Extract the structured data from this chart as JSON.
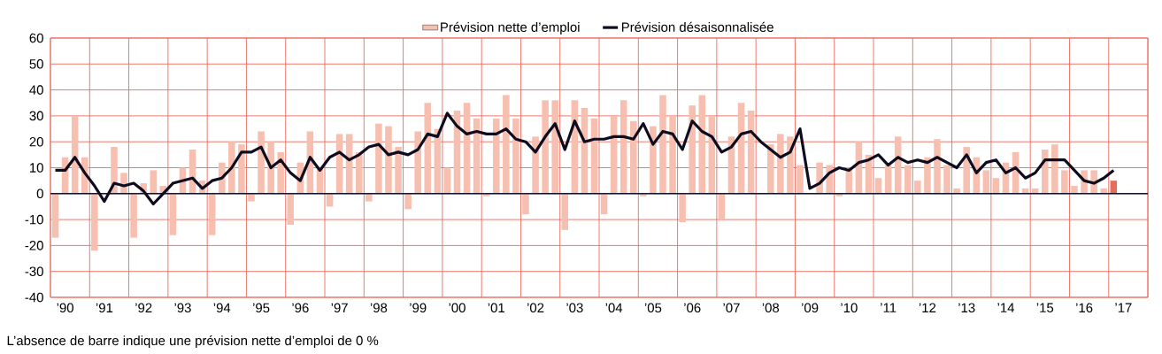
{
  "chart_data": {
    "type": "bar",
    "ylim": [
      -40,
      60
    ],
    "yticks": [
      -40,
      -30,
      -20,
      -10,
      0,
      10,
      20,
      30,
      40,
      50,
      60
    ],
    "categories": [
      null,
      "’90",
      null,
      null,
      null,
      "’91",
      null,
      null,
      null,
      "’92",
      null,
      null,
      null,
      "’93",
      null,
      null,
      null,
      "’94",
      null,
      null,
      null,
      "’95",
      null,
      null,
      null,
      "’96",
      null,
      null,
      null,
      "’97",
      null,
      null,
      null,
      "’98",
      null,
      null,
      null,
      "’99",
      null,
      null,
      null,
      "’00",
      null,
      null,
      null,
      "’01",
      null,
      null,
      null,
      "’02",
      null,
      null,
      null,
      "’03",
      null,
      null,
      null,
      "’04",
      null,
      null,
      null,
      "’05",
      null,
      null,
      null,
      "’06",
      null,
      null,
      null,
      "’07",
      null,
      null,
      null,
      "’08",
      null,
      null,
      null,
      "’09",
      null,
      null,
      null,
      "’10",
      null,
      null,
      null,
      "’11",
      null,
      null,
      null,
      "’12",
      null,
      null,
      null,
      "’13",
      null,
      null,
      null,
      "’14",
      null,
      null,
      null,
      "’15",
      null,
      null,
      null,
      "’16",
      null,
      null,
      null,
      "’17",
      null,
      null
    ],
    "grid": true,
    "legend": "top",
    "annotations": [
      "L’absence de barre indique une prévision nette d’emploi de 0 %"
    ],
    "ref_lines": [
      {
        "axis": "y",
        "value": 0,
        "color": "#14142b"
      }
    ],
    "series": [
      {
        "name": "Prévision nette d’emploi",
        "color": "#f6bfb0",
        "colors": [
          "#f6bfb0",
          "#f6bfb0",
          "#f6bfb0",
          "#f6bfb0",
          "#f6bfb0",
          "#f6bfb0",
          "#f6bfb0",
          "#f6bfb0",
          "#f6bfb0",
          "#f6bfb0",
          "#f6bfb0",
          "#f6bfb0",
          "#f6bfb0",
          "#f6bfb0",
          "#f6bfb0",
          "#f6bfb0",
          "#f6bfb0",
          "#f6bfb0",
          "#f6bfb0",
          "#f6bfb0",
          "#f6bfb0",
          "#f6bfb0",
          "#f6bfb0",
          "#f6bfb0",
          "#f6bfb0",
          "#f6bfb0",
          "#f6bfb0",
          "#f6bfb0",
          "#f6bfb0",
          "#f6bfb0",
          "#f6bfb0",
          "#f6bfb0",
          "#f6bfb0",
          "#f6bfb0",
          "#f6bfb0",
          "#f6bfb0",
          "#f6bfb0",
          "#f6bfb0",
          "#f6bfb0",
          "#f6bfb0",
          "#f6bfb0",
          "#f6bfb0",
          "#f6bfb0",
          "#f6bfb0",
          "#f6bfb0",
          "#f6bfb0",
          "#f6bfb0",
          "#f6bfb0",
          "#f6bfb0",
          "#f6bfb0",
          "#f6bfb0",
          "#f6bfb0",
          "#f6bfb0",
          "#f6bfb0",
          "#f6bfb0",
          "#f6bfb0",
          "#f6bfb0",
          "#f6bfb0",
          "#f6bfb0",
          "#f6bfb0",
          "#f6bfb0",
          "#f6bfb0",
          "#f6bfb0",
          "#f6bfb0",
          "#f6bfb0",
          "#f6bfb0",
          "#f6bfb0",
          "#f6bfb0",
          "#f6bfb0",
          "#f6bfb0",
          "#f6bfb0",
          "#f6bfb0",
          "#f6bfb0",
          "#f6bfb0",
          "#f6bfb0",
          "#f6bfb0",
          "#f6bfb0",
          "#f6bfb0",
          "#f6bfb0",
          "#f6bfb0",
          "#f6bfb0",
          "#f6bfb0",
          "#f6bfb0",
          "#f6bfb0",
          "#f6bfb0",
          "#f6bfb0",
          "#f6bfb0",
          "#f6bfb0",
          "#f6bfb0",
          "#f6bfb0",
          "#f6bfb0",
          "#f6bfb0",
          "#f6bfb0",
          "#f6bfb0",
          "#f6bfb0",
          "#f6bfb0",
          "#f6bfb0",
          "#f6bfb0",
          "#f6bfb0",
          "#f6bfb0",
          "#f6bfb0",
          "#f6bfb0",
          "#f6bfb0",
          "#f6bfb0",
          "#f6bfb0",
          "#f6bfb0",
          "#f6bfb0",
          "#f6bfb0",
          "#eb6b5a",
          "#f6bfb0",
          "#f6bfb0",
          "#f6bfb0"
        ],
        "values": [
          -17,
          14,
          30,
          14,
          -22,
          0,
          18,
          8,
          -17,
          4,
          9,
          3,
          -16,
          10,
          17,
          5,
          -16,
          12,
          20,
          19,
          -3,
          24,
          20,
          16,
          -12,
          12,
          24,
          10,
          -5,
          23,
          23,
          16,
          -3,
          27,
          26,
          18,
          -6,
          24,
          35,
          25,
          10,
          32,
          35,
          29,
          -1,
          29,
          38,
          29,
          -8,
          22,
          36,
          36,
          -14,
          36,
          33,
          29,
          -8,
          30,
          36,
          28,
          -1,
          26,
          38,
          30,
          -11,
          34,
          38,
          30,
          -10,
          22,
          35,
          32,
          0,
          19,
          23,
          22,
          11,
          null,
          12,
          11,
          -1,
          10,
          20,
          15,
          6,
          11,
          22,
          11,
          5,
          14,
          21,
          11,
          2,
          18,
          14,
          9,
          6,
          12,
          16,
          2,
          2,
          17,
          19,
          9,
          3,
          9,
          9,
          2,
          5,
          null,
          null,
          null
        ]
      },
      {
        "name": "Prévision désaisonnalisée",
        "type": "line",
        "color": "#0d0d1f",
        "line_style": "solid",
        "values": [
          9,
          9,
          14,
          8,
          3,
          -3,
          4,
          3,
          4,
          1,
          -4,
          0,
          4,
          5,
          6,
          2,
          5,
          6,
          10,
          16,
          16,
          18,
          10,
          13,
          8,
          5,
          14,
          9,
          14,
          16,
          13,
          15,
          18,
          19,
          15,
          16,
          15,
          17,
          23,
          22,
          31,
          26,
          23,
          24,
          23,
          23,
          25,
          21,
          20,
          16,
          22,
          27,
          17,
          28,
          20,
          21,
          21,
          22,
          22,
          21,
          27,
          19,
          24,
          23,
          17,
          28,
          24,
          22,
          16,
          18,
          23,
          24,
          20,
          17,
          14,
          16,
          25,
          2,
          4,
          8,
          10,
          9,
          12,
          13,
          15,
          11,
          14,
          12,
          13,
          12,
          14,
          12,
          10,
          15,
          8,
          12,
          13,
          8,
          10,
          6,
          8,
          13,
          13,
          13,
          9,
          5,
          4,
          6,
          9,
          null,
          null,
          null
        ]
      }
    ]
  }
}
